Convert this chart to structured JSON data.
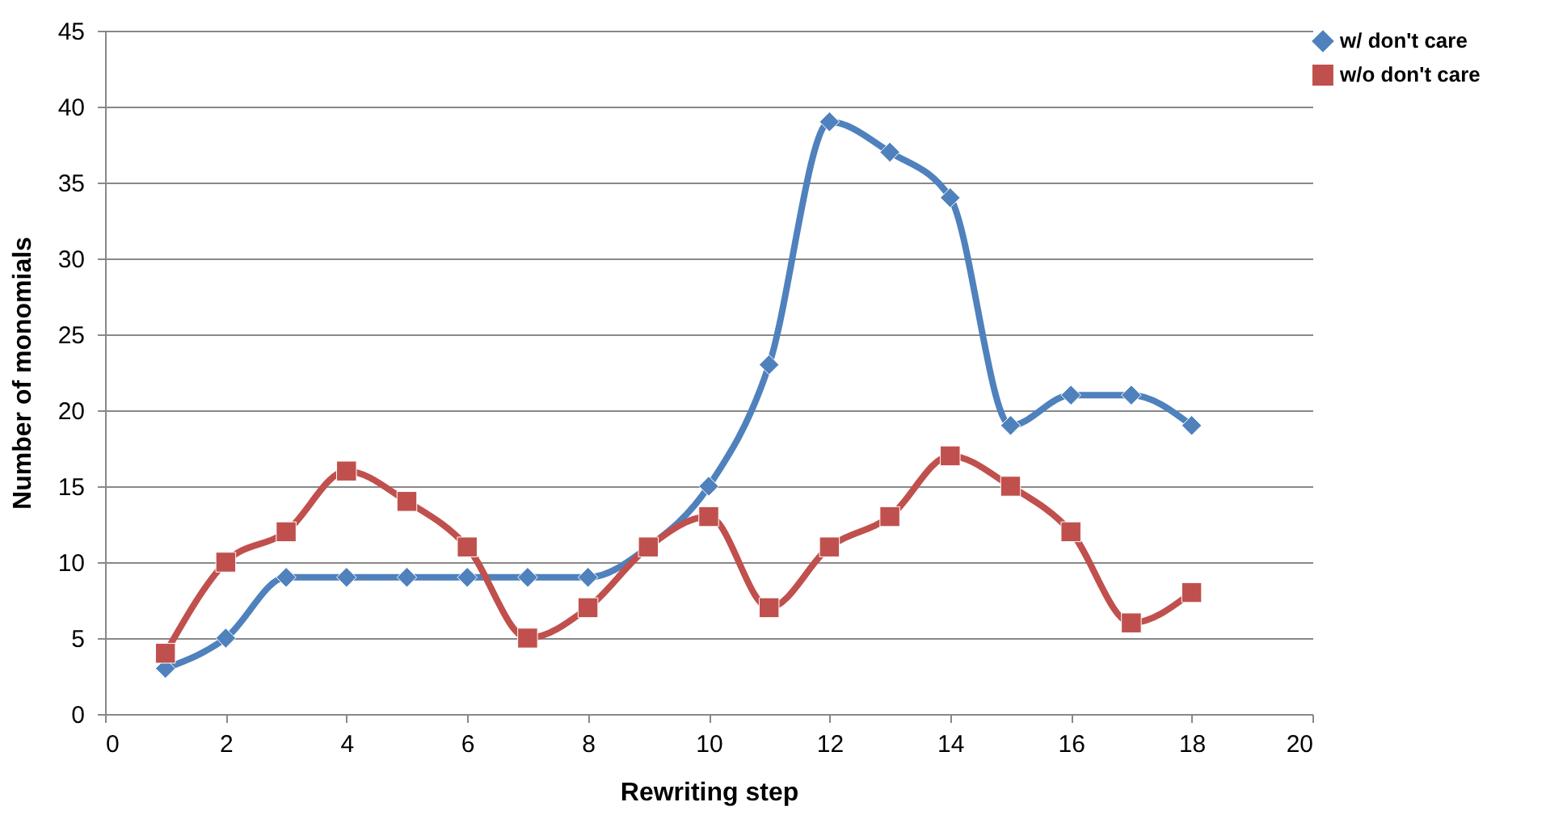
{
  "chart_data": {
    "type": "line",
    "xlabel": "Rewriting step",
    "ylabel": "Number of monomials",
    "x": [
      1,
      2,
      3,
      4,
      5,
      6,
      7,
      8,
      9,
      10,
      11,
      12,
      13,
      14,
      15,
      16,
      17,
      18
    ],
    "series": [
      {
        "name": "w/ don't care",
        "color": "#4f81bd",
        "marker": "diamond",
        "values": [
          3,
          5,
          9,
          9,
          9,
          9,
          9,
          9,
          11,
          15,
          23,
          39,
          37,
          34,
          19,
          21,
          21,
          19
        ]
      },
      {
        "name": "w/o don't care",
        "color": "#c0504d",
        "marker": "square",
        "values": [
          4,
          10,
          12,
          16,
          14,
          11,
          5,
          7,
          11,
          13,
          7,
          11,
          13,
          17,
          15,
          12,
          6,
          8
        ]
      }
    ],
    "xlim": [
      0,
      20
    ],
    "xticks": [
      0,
      2,
      4,
      6,
      8,
      10,
      12,
      14,
      16,
      18,
      20
    ],
    "ylim": [
      0,
      45
    ],
    "yticks": [
      0,
      5,
      10,
      15,
      20,
      25,
      30,
      35,
      40,
      45
    ],
    "grid": "y",
    "legend": "right",
    "line_style": "solid"
  }
}
